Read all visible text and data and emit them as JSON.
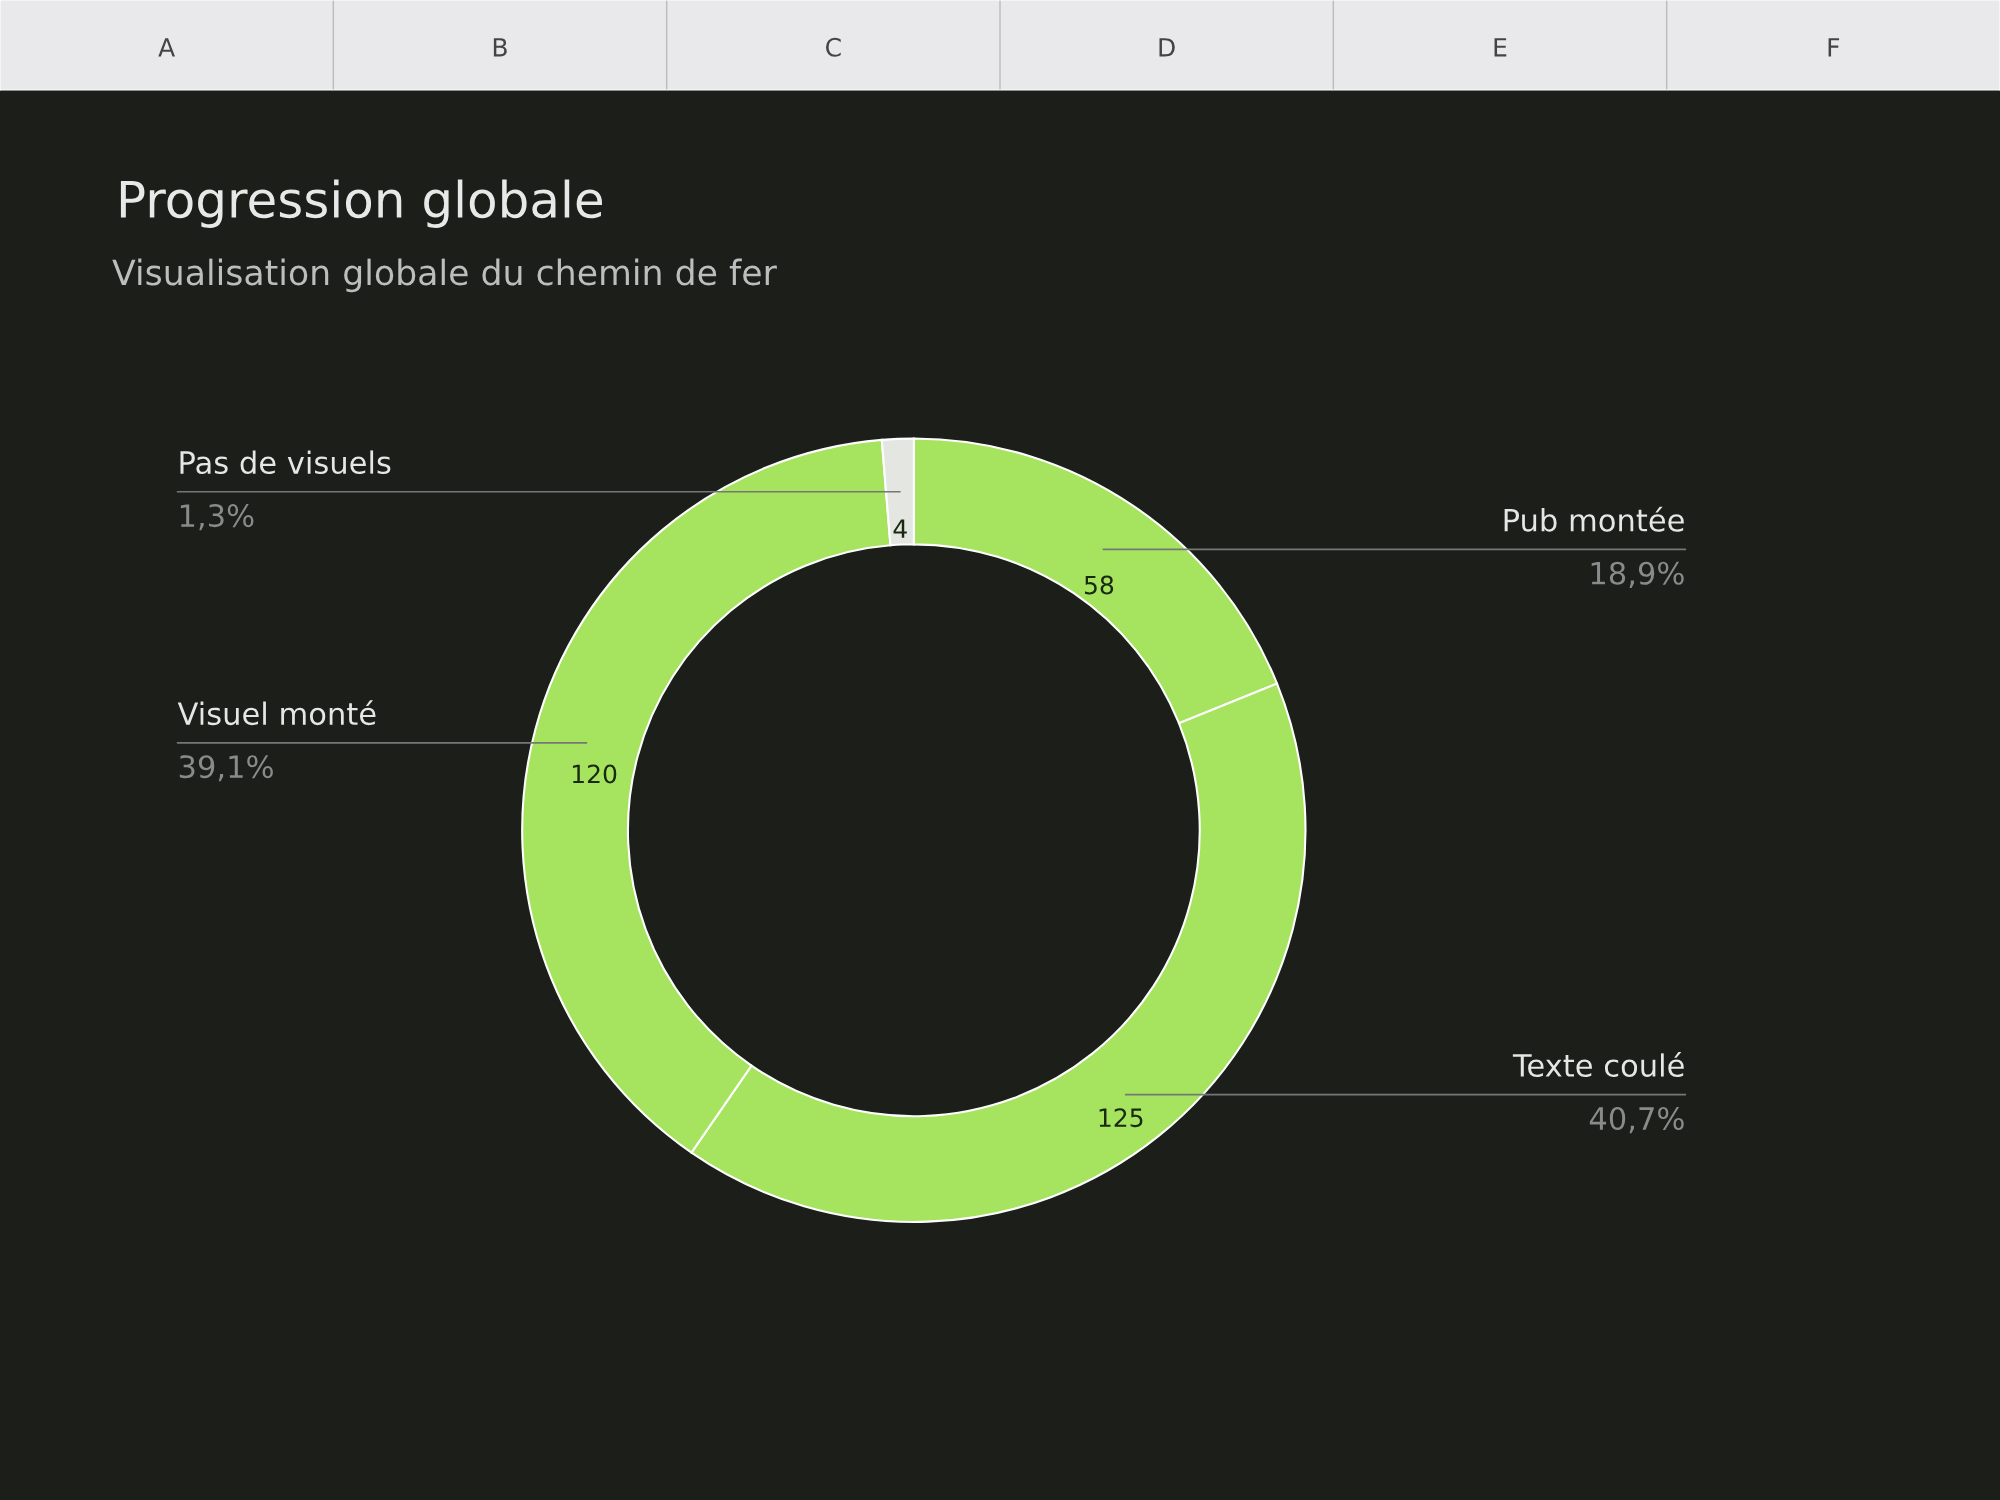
{
  "chart_data": {
    "type": "donut",
    "title": "Progression globale",
    "subtitle": "Visualisation globale du chemin de fer",
    "categories": [
      "Pub montée",
      "Texte coulé",
      "Visuel monté",
      "Pas de visuels"
    ],
    "values": [
      58,
      125,
      120,
      4
    ],
    "colors": [
      "#a6e35f",
      "#a6e35f",
      "#a6e35f",
      "#e4e6e2"
    ],
    "data_labels": true,
    "annotations": [
      {
        "text": "18,9%",
        "x": "Pub montée"
      },
      {
        "text": "40,7%",
        "x": "Texte coulé"
      },
      {
        "text": "39,1%",
        "x": "Visuel monté"
      },
      {
        "text": "1,3%",
        "x": "Pas de visuels"
      },
      "A",
      "B",
      "C",
      "D",
      "E",
      "F"
    ]
  }
}
